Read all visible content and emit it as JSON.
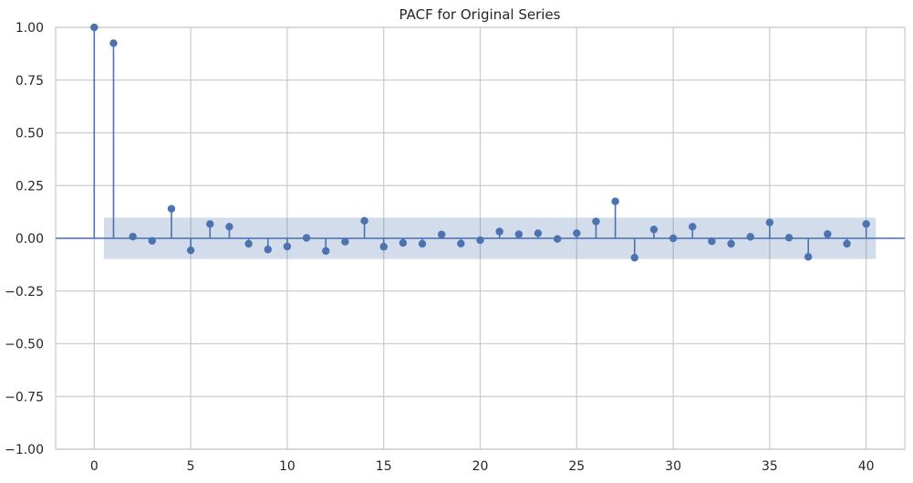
{
  "chart_data": {
    "type": "stem",
    "title": "PACF for Original Series",
    "xlabel": "",
    "ylabel": "",
    "xlim": [
      -2,
      42
    ],
    "ylim": [
      -1.0,
      1.0
    ],
    "x_ticks": [
      0,
      5,
      10,
      15,
      20,
      25,
      30,
      35,
      40
    ],
    "y_ticks": [
      1.0,
      0.75,
      0.5,
      0.25,
      0.0,
      -0.25,
      -0.5,
      -0.75,
      -1.0
    ],
    "y_tick_labels": [
      "1.00",
      "0.75",
      "0.50",
      "0.25",
      "0.00",
      "−0.25",
      "−0.50",
      "−0.75",
      "−1.00"
    ],
    "grid": true,
    "series_color": "#4c72b0",
    "confidence_band": {
      "x_start": 0.5,
      "x_end": 40.5,
      "lower": -0.098,
      "upper": 0.098
    },
    "lags": [
      0,
      1,
      2,
      3,
      4,
      5,
      6,
      7,
      8,
      9,
      10,
      11,
      12,
      13,
      14,
      15,
      16,
      17,
      18,
      19,
      20,
      21,
      22,
      23,
      24,
      25,
      26,
      27,
      28,
      29,
      30,
      31,
      32,
      33,
      34,
      35,
      36,
      37,
      38,
      39,
      40
    ],
    "values": [
      1.0,
      0.925,
      0.008,
      -0.012,
      0.14,
      -0.057,
      0.068,
      0.055,
      -0.026,
      -0.053,
      -0.039,
      0.002,
      -0.06,
      -0.016,
      0.083,
      -0.04,
      -0.022,
      -0.026,
      0.018,
      -0.025,
      -0.009,
      0.032,
      0.019,
      0.024,
      -0.003,
      0.024,
      0.08,
      0.175,
      -0.092,
      0.042,
      0.0,
      0.055,
      -0.014,
      -0.026,
      0.007,
      0.075,
      0.003,
      -0.088,
      0.02,
      -0.026,
      0.068
    ]
  }
}
